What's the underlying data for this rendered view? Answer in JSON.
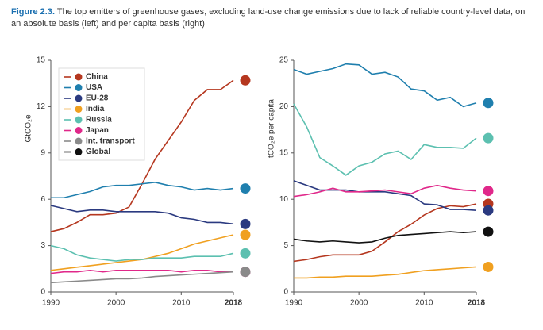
{
  "figure_label": "Figure 2.3.",
  "caption": "The top emitters of greenhouse gases, excluding land-use change emissions due to lack of reliable country-level data, on an absolute basis (left) and per capita basis (right)",
  "legend": [
    {
      "name": "China",
      "color": "#b5371f"
    },
    {
      "name": "USA",
      "color": "#1f7fae"
    },
    {
      "name": "EU-28",
      "color": "#2b3a80"
    },
    {
      "name": "India",
      "color": "#f0a020"
    },
    {
      "name": "Russia",
      "color": "#5cc0b0"
    },
    {
      "name": "Japan",
      "color": "#e0288a"
    },
    {
      "name": "Int. transport",
      "color": "#8a8a8a"
    },
    {
      "name": "Global",
      "color": "#111111"
    }
  ],
  "chart_data": [
    {
      "type": "line",
      "y_label": "GtCO₂e",
      "x": [
        1990,
        1992,
        1994,
        1996,
        1998,
        2000,
        2002,
        2004,
        2006,
        2008,
        2010,
        2012,
        2014,
        2016,
        2018
      ],
      "xlim": [
        1990,
        2018
      ],
      "xticks": [
        1990,
        2000,
        2010,
        2018
      ],
      "ylim": [
        0,
        15
      ],
      "yticks": [
        0,
        3,
        6,
        9,
        12,
        15
      ],
      "series": [
        {
          "name": "China",
          "color": "#b5371f",
          "values": [
            3.9,
            4.1,
            4.5,
            5.0,
            5.0,
            5.1,
            5.5,
            7.0,
            8.6,
            9.8,
            11.0,
            12.4,
            13.1,
            13.1,
            13.7
          ]
        },
        {
          "name": "USA",
          "color": "#1f7fae",
          "values": [
            6.1,
            6.1,
            6.3,
            6.5,
            6.8,
            6.9,
            6.9,
            7.0,
            7.1,
            6.9,
            6.8,
            6.6,
            6.7,
            6.6,
            6.7
          ]
        },
        {
          "name": "EU-28",
          "color": "#2b3a80",
          "values": [
            5.6,
            5.4,
            5.2,
            5.3,
            5.3,
            5.2,
            5.2,
            5.2,
            5.2,
            5.1,
            4.8,
            4.7,
            4.5,
            4.5,
            4.4
          ]
        },
        {
          "name": "India",
          "color": "#f0a020",
          "values": [
            1.4,
            1.5,
            1.6,
            1.7,
            1.8,
            1.9,
            2.0,
            2.1,
            2.3,
            2.5,
            2.8,
            3.1,
            3.3,
            3.5,
            3.7
          ]
        },
        {
          "name": "Russia",
          "color": "#5cc0b0",
          "values": [
            3.0,
            2.8,
            2.4,
            2.2,
            2.1,
            2.0,
            2.1,
            2.1,
            2.2,
            2.2,
            2.2,
            2.3,
            2.3,
            2.3,
            2.5
          ]
        },
        {
          "name": "Japan",
          "color": "#e0288a",
          "values": [
            1.2,
            1.3,
            1.3,
            1.4,
            1.3,
            1.4,
            1.4,
            1.4,
            1.4,
            1.4,
            1.3,
            1.4,
            1.4,
            1.3,
            1.3
          ]
        },
        {
          "name": "Int. transport",
          "color": "#8a8a8a",
          "values": [
            0.6,
            0.65,
            0.7,
            0.75,
            0.8,
            0.85,
            0.85,
            0.9,
            1.0,
            1.05,
            1.1,
            1.15,
            1.2,
            1.25,
            1.3
          ]
        }
      ]
    },
    {
      "type": "line",
      "y_label": "tCO₂e per capita",
      "x": [
        1990,
        1992,
        1994,
        1996,
        1998,
        2000,
        2002,
        2004,
        2006,
        2008,
        2010,
        2012,
        2014,
        2016,
        2018
      ],
      "xlim": [
        1990,
        2018
      ],
      "xticks": [
        1990,
        2000,
        2010,
        2018
      ],
      "ylim": [
        0,
        25
      ],
      "yticks": [
        0,
        5,
        10,
        15,
        20,
        25
      ],
      "series": [
        {
          "name": "China",
          "color": "#b5371f",
          "values": [
            3.3,
            3.5,
            3.8,
            4.0,
            4.0,
            4.0,
            4.4,
            5.4,
            6.5,
            7.3,
            8.3,
            9.0,
            9.3,
            9.2,
            9.5
          ]
        },
        {
          "name": "USA",
          "color": "#1f7fae",
          "values": [
            24.0,
            23.5,
            23.8,
            24.1,
            24.6,
            24.5,
            23.5,
            23.7,
            23.2,
            21.9,
            21.7,
            20.7,
            21.0,
            20.0,
            20.4
          ]
        },
        {
          "name": "EU-28",
          "color": "#2b3a80",
          "values": [
            12.0,
            11.5,
            11.0,
            11.0,
            11.0,
            10.8,
            10.8,
            10.8,
            10.6,
            10.4,
            9.5,
            9.4,
            8.9,
            8.9,
            8.8
          ]
        },
        {
          "name": "India",
          "color": "#f0a020",
          "values": [
            1.5,
            1.5,
            1.6,
            1.6,
            1.7,
            1.7,
            1.7,
            1.8,
            1.9,
            2.1,
            2.3,
            2.4,
            2.5,
            2.6,
            2.7
          ]
        },
        {
          "name": "Russia",
          "color": "#5cc0b0",
          "values": [
            20.3,
            17.8,
            14.5,
            13.6,
            12.6,
            13.6,
            14.0,
            14.9,
            15.2,
            14.3,
            15.9,
            15.6,
            15.6,
            15.5,
            16.6
          ]
        },
        {
          "name": "Japan",
          "color": "#e0288a",
          "values": [
            10.3,
            10.5,
            10.8,
            11.2,
            10.8,
            10.8,
            10.9,
            11.0,
            10.8,
            10.6,
            11.2,
            11.5,
            11.2,
            11.0,
            10.9
          ]
        },
        {
          "name": "Global",
          "color": "#111111",
          "values": [
            5.7,
            5.5,
            5.4,
            5.5,
            5.4,
            5.3,
            5.4,
            5.8,
            6.1,
            6.2,
            6.3,
            6.4,
            6.5,
            6.4,
            6.5
          ]
        }
      ]
    }
  ]
}
